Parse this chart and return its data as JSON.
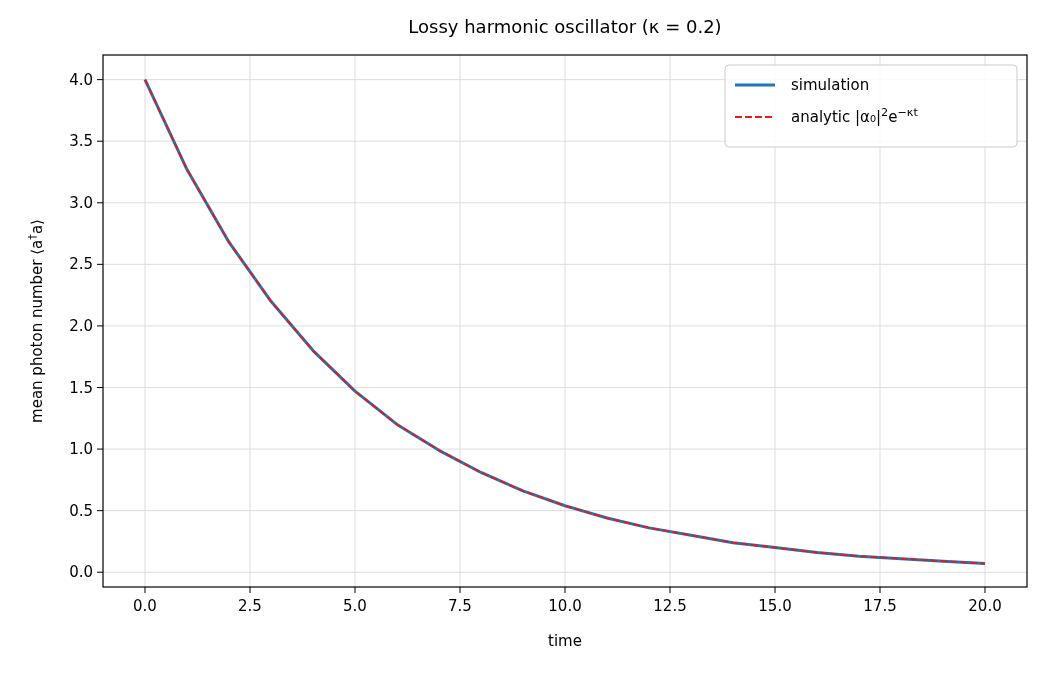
{
  "chart_data": {
    "type": "line",
    "title": "Lossy harmonic oscillator (κ = 0.2)",
    "xlabel": "time",
    "ylabel": "mean photon number  ⟨a$^{†}$a⟩",
    "x": [
      0,
      1,
      2,
      3,
      4,
      5,
      6,
      7,
      8,
      9,
      10,
      11,
      12,
      13,
      14,
      15,
      16,
      17,
      18,
      19,
      20
    ],
    "series": [
      {
        "name": "simulation",
        "color": "#1f77b4",
        "line_style": "solid",
        "values": [
          4.0,
          3.27,
          2.68,
          2.2,
          1.8,
          1.47,
          1.2,
          0.99,
          0.81,
          0.66,
          0.54,
          0.44,
          0.36,
          0.3,
          0.24,
          0.2,
          0.16,
          0.13,
          0.11,
          0.09,
          0.07
        ]
      },
      {
        "name": "analytic  |α₀|$^{2}$e$^{−κt}$",
        "color": "#e41a1c",
        "line_style": "dashed",
        "values": [
          4.0,
          3.27,
          2.68,
          2.2,
          1.8,
          1.47,
          1.2,
          0.99,
          0.81,
          0.66,
          0.54,
          0.44,
          0.36,
          0.3,
          0.24,
          0.2,
          0.16,
          0.13,
          0.11,
          0.09,
          0.07
        ]
      }
    ],
    "xlim": [
      -1,
      21
    ],
    "ylim": [
      -0.12,
      4.2
    ],
    "xticks": [
      {
        "value": 0,
        "label": "0.0"
      },
      2.5,
      {
        "value": 5,
        "label": "5.0"
      },
      7.5,
      {
        "value": 10,
        "label": "10.0"
      },
      12.5,
      {
        "value": 15,
        "label": "15.0"
      },
      17.5,
      {
        "value": 20,
        "label": "20.0"
      }
    ],
    "yticks": [
      {
        "value": 0,
        "label": "0.0"
      },
      0.5,
      {
        "value": 1,
        "label": "1.0"
      },
      1.5,
      {
        "value": 2,
        "label": "2.0"
      },
      2.5,
      {
        "value": 3,
        "label": "3.0"
      },
      3.5,
      {
        "value": 4,
        "label": "4.0"
      }
    ],
    "grid": true,
    "legend": "top right"
  }
}
